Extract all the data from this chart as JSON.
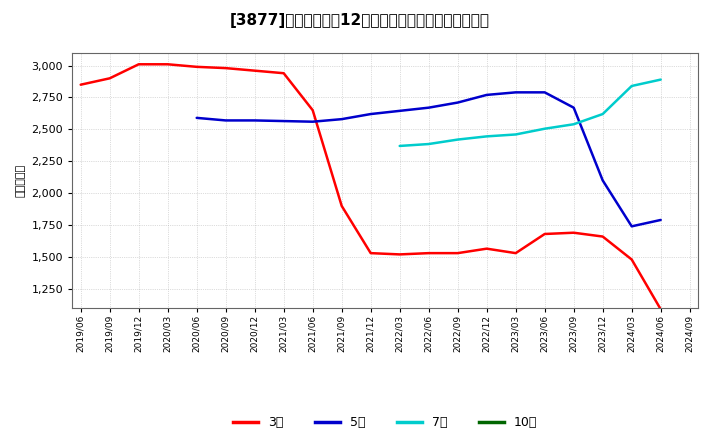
{
  "title": "[3877]　当期純利益12か月移動合計の標準偏差の推移",
  "ylabel": "（百万円）",
  "ylim": [
    1100,
    3100
  ],
  "yticks": [
    1250,
    1500,
    1750,
    2000,
    2250,
    2500,
    2750,
    3000
  ],
  "background_color": "#ffffff",
  "plot_bg_color": "#ffffff",
  "grid_color": "#aaaaaa",
  "series": {
    "3年": {
      "color": "#ff0000",
      "data": [
        [
          "2019/06",
          2850
        ],
        [
          "2019/09",
          2900
        ],
        [
          "2019/12",
          3010
        ],
        [
          "2020/03",
          3010
        ],
        [
          "2020/06",
          2990
        ],
        [
          "2020/09",
          2980
        ],
        [
          "2020/12",
          2960
        ],
        [
          "2021/03",
          2940
        ],
        [
          "2021/06",
          2650
        ],
        [
          "2021/09",
          1900
        ],
        [
          "2021/12",
          1530
        ],
        [
          "2022/03",
          1520
        ],
        [
          "2022/06",
          1530
        ],
        [
          "2022/09",
          1530
        ],
        [
          "2022/12",
          1565
        ],
        [
          "2023/03",
          1530
        ],
        [
          "2023/06",
          1680
        ],
        [
          "2023/09",
          1690
        ],
        [
          "2023/12",
          1660
        ],
        [
          "2024/03",
          1480
        ],
        [
          "2024/06",
          1090
        ]
      ]
    },
    "5年": {
      "color": "#0000cc",
      "data": [
        [
          "2020/06",
          2590
        ],
        [
          "2020/09",
          2570
        ],
        [
          "2020/12",
          2570
        ],
        [
          "2021/03",
          2565
        ],
        [
          "2021/06",
          2560
        ],
        [
          "2021/09",
          2580
        ],
        [
          "2021/12",
          2620
        ],
        [
          "2022/03",
          2645
        ],
        [
          "2022/06",
          2670
        ],
        [
          "2022/09",
          2710
        ],
        [
          "2022/12",
          2770
        ],
        [
          "2023/03",
          2790
        ],
        [
          "2023/06",
          2790
        ],
        [
          "2023/09",
          2670
        ],
        [
          "2023/12",
          2100
        ],
        [
          "2024/03",
          1740
        ],
        [
          "2024/06",
          1790
        ]
      ]
    },
    "7年": {
      "color": "#00cccc",
      "data": [
        [
          "2022/03",
          2370
        ],
        [
          "2022/06",
          2385
        ],
        [
          "2022/09",
          2420
        ],
        [
          "2022/12",
          2445
        ],
        [
          "2023/03",
          2460
        ],
        [
          "2023/06",
          2505
        ],
        [
          "2023/09",
          2540
        ],
        [
          "2023/12",
          2620
        ],
        [
          "2024/03",
          2840
        ],
        [
          "2024/06",
          2890
        ]
      ]
    },
    "10年": {
      "color": "#006600",
      "data": []
    }
  },
  "xtick_labels": [
    "2019/06",
    "2019/09",
    "2019/12",
    "2020/03",
    "2020/06",
    "2020/09",
    "2020/12",
    "2021/03",
    "2021/06",
    "2021/09",
    "2021/12",
    "2022/03",
    "2022/06",
    "2022/09",
    "2022/12",
    "2023/03",
    "2023/06",
    "2023/09",
    "2023/12",
    "2024/03",
    "2024/06",
    "2024/09"
  ],
  "legend_labels": [
    "3年",
    "5年",
    "7年",
    "10年"
  ],
  "legend_colors": [
    "#ff0000",
    "#0000cc",
    "#00cccc",
    "#006600"
  ]
}
